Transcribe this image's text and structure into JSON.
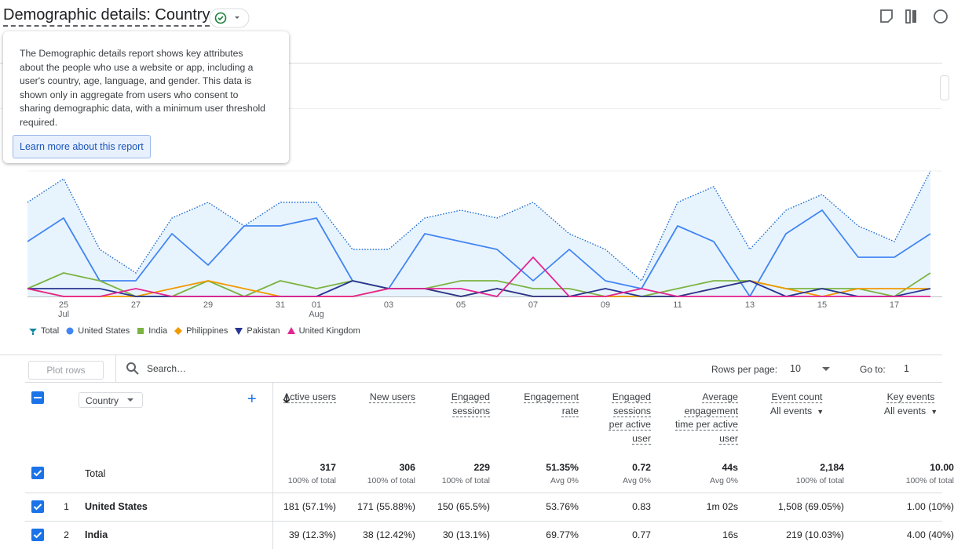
{
  "header": {
    "title": "Demographic details: Country"
  },
  "tooltip": {
    "text": "The Demographic details report shows key attributes about the people who use a website or app, including a user's country, age, language, and gender. This data is shown only in aggregate from users who consent to sharing demographic data, with a minimum user threshold required.",
    "link": "Learn more about this report"
  },
  "chart_data": {
    "type": "line",
    "x": [
      null,
      "25",
      null,
      "27",
      null,
      "29",
      null,
      "31",
      "01",
      null,
      "03",
      null,
      "05",
      null,
      "07",
      null,
      "09",
      null,
      "11",
      null,
      "13",
      null,
      "15",
      null,
      "17",
      null
    ],
    "x_sublabels": [
      null,
      "Jul",
      null,
      null,
      null,
      null,
      null,
      null,
      "Aug",
      null,
      null,
      null,
      null,
      null,
      null,
      null,
      null,
      null,
      null,
      null,
      null,
      null,
      null,
      null,
      null,
      null
    ],
    "ylim": [
      0,
      16
    ],
    "series": [
      {
        "name": "Total",
        "color": "#1967d2",
        "values": [
          12,
          15,
          6,
          3,
          10,
          12,
          9,
          12,
          12,
          6,
          6,
          10,
          11,
          10,
          12,
          8,
          6,
          2,
          12,
          14,
          6,
          11,
          13,
          9,
          7,
          16
        ]
      },
      {
        "name": "United States",
        "color": "#4285f4",
        "values": [
          7,
          10,
          2,
          2,
          8,
          4,
          9,
          9,
          10,
          2,
          1,
          8,
          7,
          6,
          2,
          6,
          2,
          1,
          9,
          7,
          0,
          8,
          11,
          5,
          5,
          8
        ]
      },
      {
        "name": "India",
        "color": "#7cb342",
        "values": [
          1,
          3,
          2,
          0,
          0,
          2,
          0,
          2,
          1,
          2,
          1,
          1,
          2,
          2,
          1,
          1,
          0,
          0,
          1,
          2,
          2,
          1,
          1,
          1,
          0,
          3
        ]
      },
      {
        "name": "Philippines",
        "color": "#f29900",
        "values": [
          1,
          0,
          0,
          0,
          1,
          2,
          1,
          0,
          0,
          0,
          1,
          1,
          0,
          1,
          0,
          0,
          0,
          0,
          0,
          1,
          2,
          1,
          0,
          1,
          1,
          1
        ]
      },
      {
        "name": "Pakistan",
        "color": "#283593",
        "values": [
          1,
          1,
          1,
          0,
          0,
          0,
          0,
          0,
          0,
          2,
          1,
          1,
          0,
          1,
          0,
          0,
          1,
          0,
          0,
          1,
          2,
          0,
          1,
          0,
          0,
          1
        ]
      },
      {
        "name": "United Kingdom",
        "color": "#e52592",
        "values": [
          1,
          0,
          0,
          1,
          0,
          0,
          0,
          0,
          0,
          0,
          1,
          1,
          1,
          0,
          5,
          0,
          0,
          1,
          0,
          0,
          0,
          0,
          0,
          0,
          0,
          0
        ]
      }
    ]
  },
  "toolbar": {
    "plot_rows": "Plot rows",
    "search": "Search…",
    "rows_per_page_label": "Rows per page:",
    "rows_per_page": 10,
    "go_to_label": "Go to:",
    "go_to": 1
  },
  "table": {
    "dimension": "Country",
    "columns": [
      {
        "label": "Active users"
      },
      {
        "label": "New users"
      },
      {
        "label": "Engaged sessions"
      },
      {
        "label": "Engagement rate"
      },
      {
        "label": "Engaged sessions per active user"
      },
      {
        "label": "Average engagement time per active user"
      },
      {
        "label": "Event count",
        "sublabel": "All events"
      },
      {
        "label": "Key events",
        "sublabel": "All events"
      }
    ],
    "total": {
      "label": "Total",
      "cells": [
        [
          "317",
          "100% of total"
        ],
        [
          "306",
          "100% of total"
        ],
        [
          "229",
          "100% of total"
        ],
        [
          "51.35%",
          "Avg 0%"
        ],
        [
          "0.72",
          "Avg 0%"
        ],
        [
          "44s",
          "Avg 0%"
        ],
        [
          "2,184",
          "100% of total"
        ],
        [
          "10.00",
          "100% of total"
        ]
      ]
    },
    "rows": [
      {
        "rank": 1,
        "name": "United States",
        "cells": [
          "181 (57.1%)",
          "171 (55.88%)",
          "150 (65.5%)",
          "53.76%",
          "0.83",
          "1m 02s",
          "1,508 (69.05%)",
          "1.00 (10%)"
        ]
      },
      {
        "rank": 2,
        "name": "India",
        "cells": [
          "39 (12.3%)",
          "38 (12.42%)",
          "30 (13.1%)",
          "69.77%",
          "0.77",
          "16s",
          "219 (10.03%)",
          "4.00 (40%)"
        ]
      }
    ]
  }
}
